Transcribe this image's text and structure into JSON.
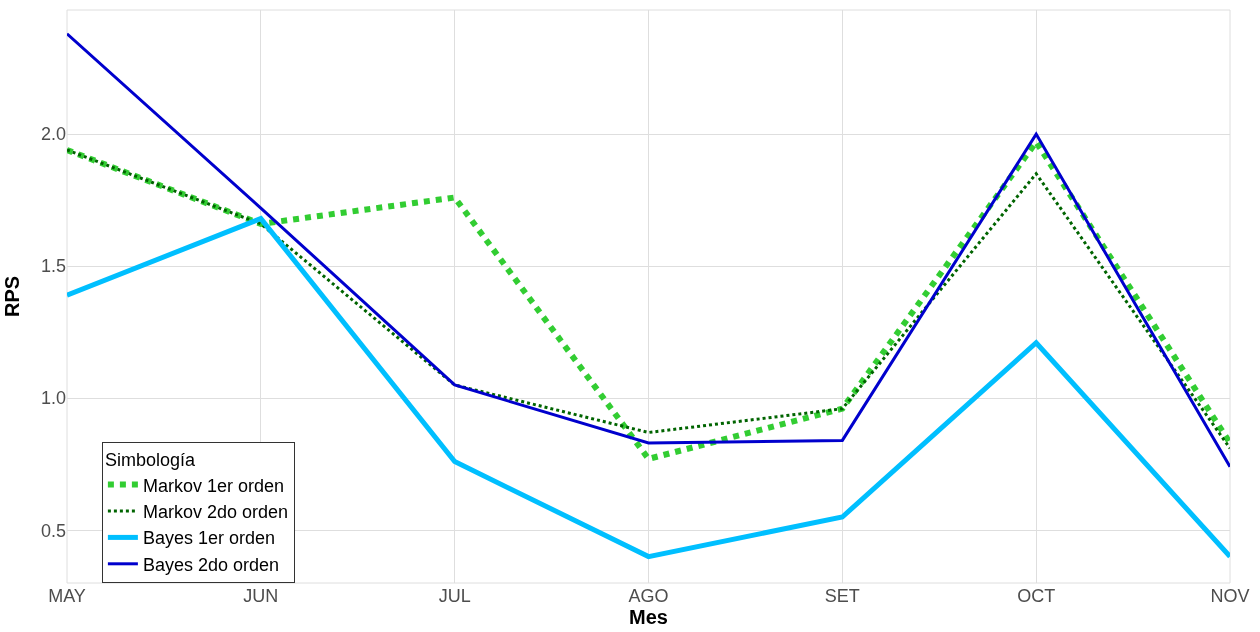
{
  "chart_data": {
    "type": "line",
    "xlabel": "Mes",
    "ylabel": "RPS",
    "legend_title": "Simbología",
    "categories": [
      "MAY",
      "JUN",
      "JUL",
      "AGO",
      "SET",
      "OCT",
      "NOV"
    ],
    "series": [
      {
        "name": "Markov 1er orden",
        "color": "#32cd32",
        "line_style": "dotted",
        "values": [
          1.94,
          1.66,
          1.76,
          0.77,
          0.96,
          1.97,
          0.83
        ]
      },
      {
        "name": "Markov 2do orden",
        "color": "#006400",
        "line_style": "dotted",
        "values": [
          1.94,
          1.66,
          1.05,
          0.87,
          0.96,
          1.85,
          0.81
        ]
      },
      {
        "name": "Bayes 1er orden",
        "color": "#00bfff",
        "line_style": "solid",
        "values": [
          1.39,
          1.68,
          0.76,
          0.4,
          0.55,
          1.21,
          0.4
        ]
      },
      {
        "name": "Bayes 2do orden",
        "color": "#0000cd",
        "line_style": "solid",
        "values": [
          2.38,
          1.72,
          1.05,
          0.83,
          0.84,
          2.0,
          0.74
        ]
      }
    ],
    "ylim": [
      0.3,
      2.47
    ],
    "yticks": [
      {
        "value": 0.5,
        "label": "0.5"
      },
      {
        "value": 1.0,
        "label": "1.0"
      },
      {
        "value": 1.5,
        "label": "1.5"
      },
      {
        "value": 2.0,
        "label": "2.0"
      }
    ],
    "grid": true,
    "legend": "bottom left",
    "marker": "none"
  }
}
